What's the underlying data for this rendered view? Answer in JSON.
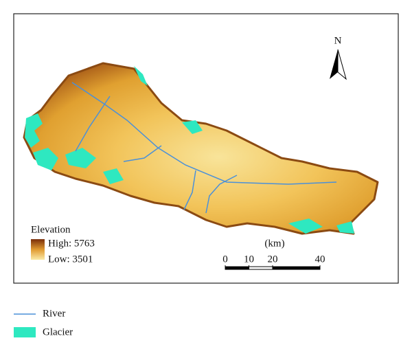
{
  "map": {
    "north": "N",
    "legend": {
      "title": "Elevation",
      "high": "High: 5763",
      "low": "Low: 3501"
    },
    "scale": {
      "unit": "(km)",
      "ticks": [
        0,
        10,
        20,
        40
      ]
    },
    "key": [
      {
        "label": "River",
        "color": "#4a90d9"
      },
      {
        "label": "Glacier",
        "color": "#2ee8c0"
      }
    ]
  }
}
